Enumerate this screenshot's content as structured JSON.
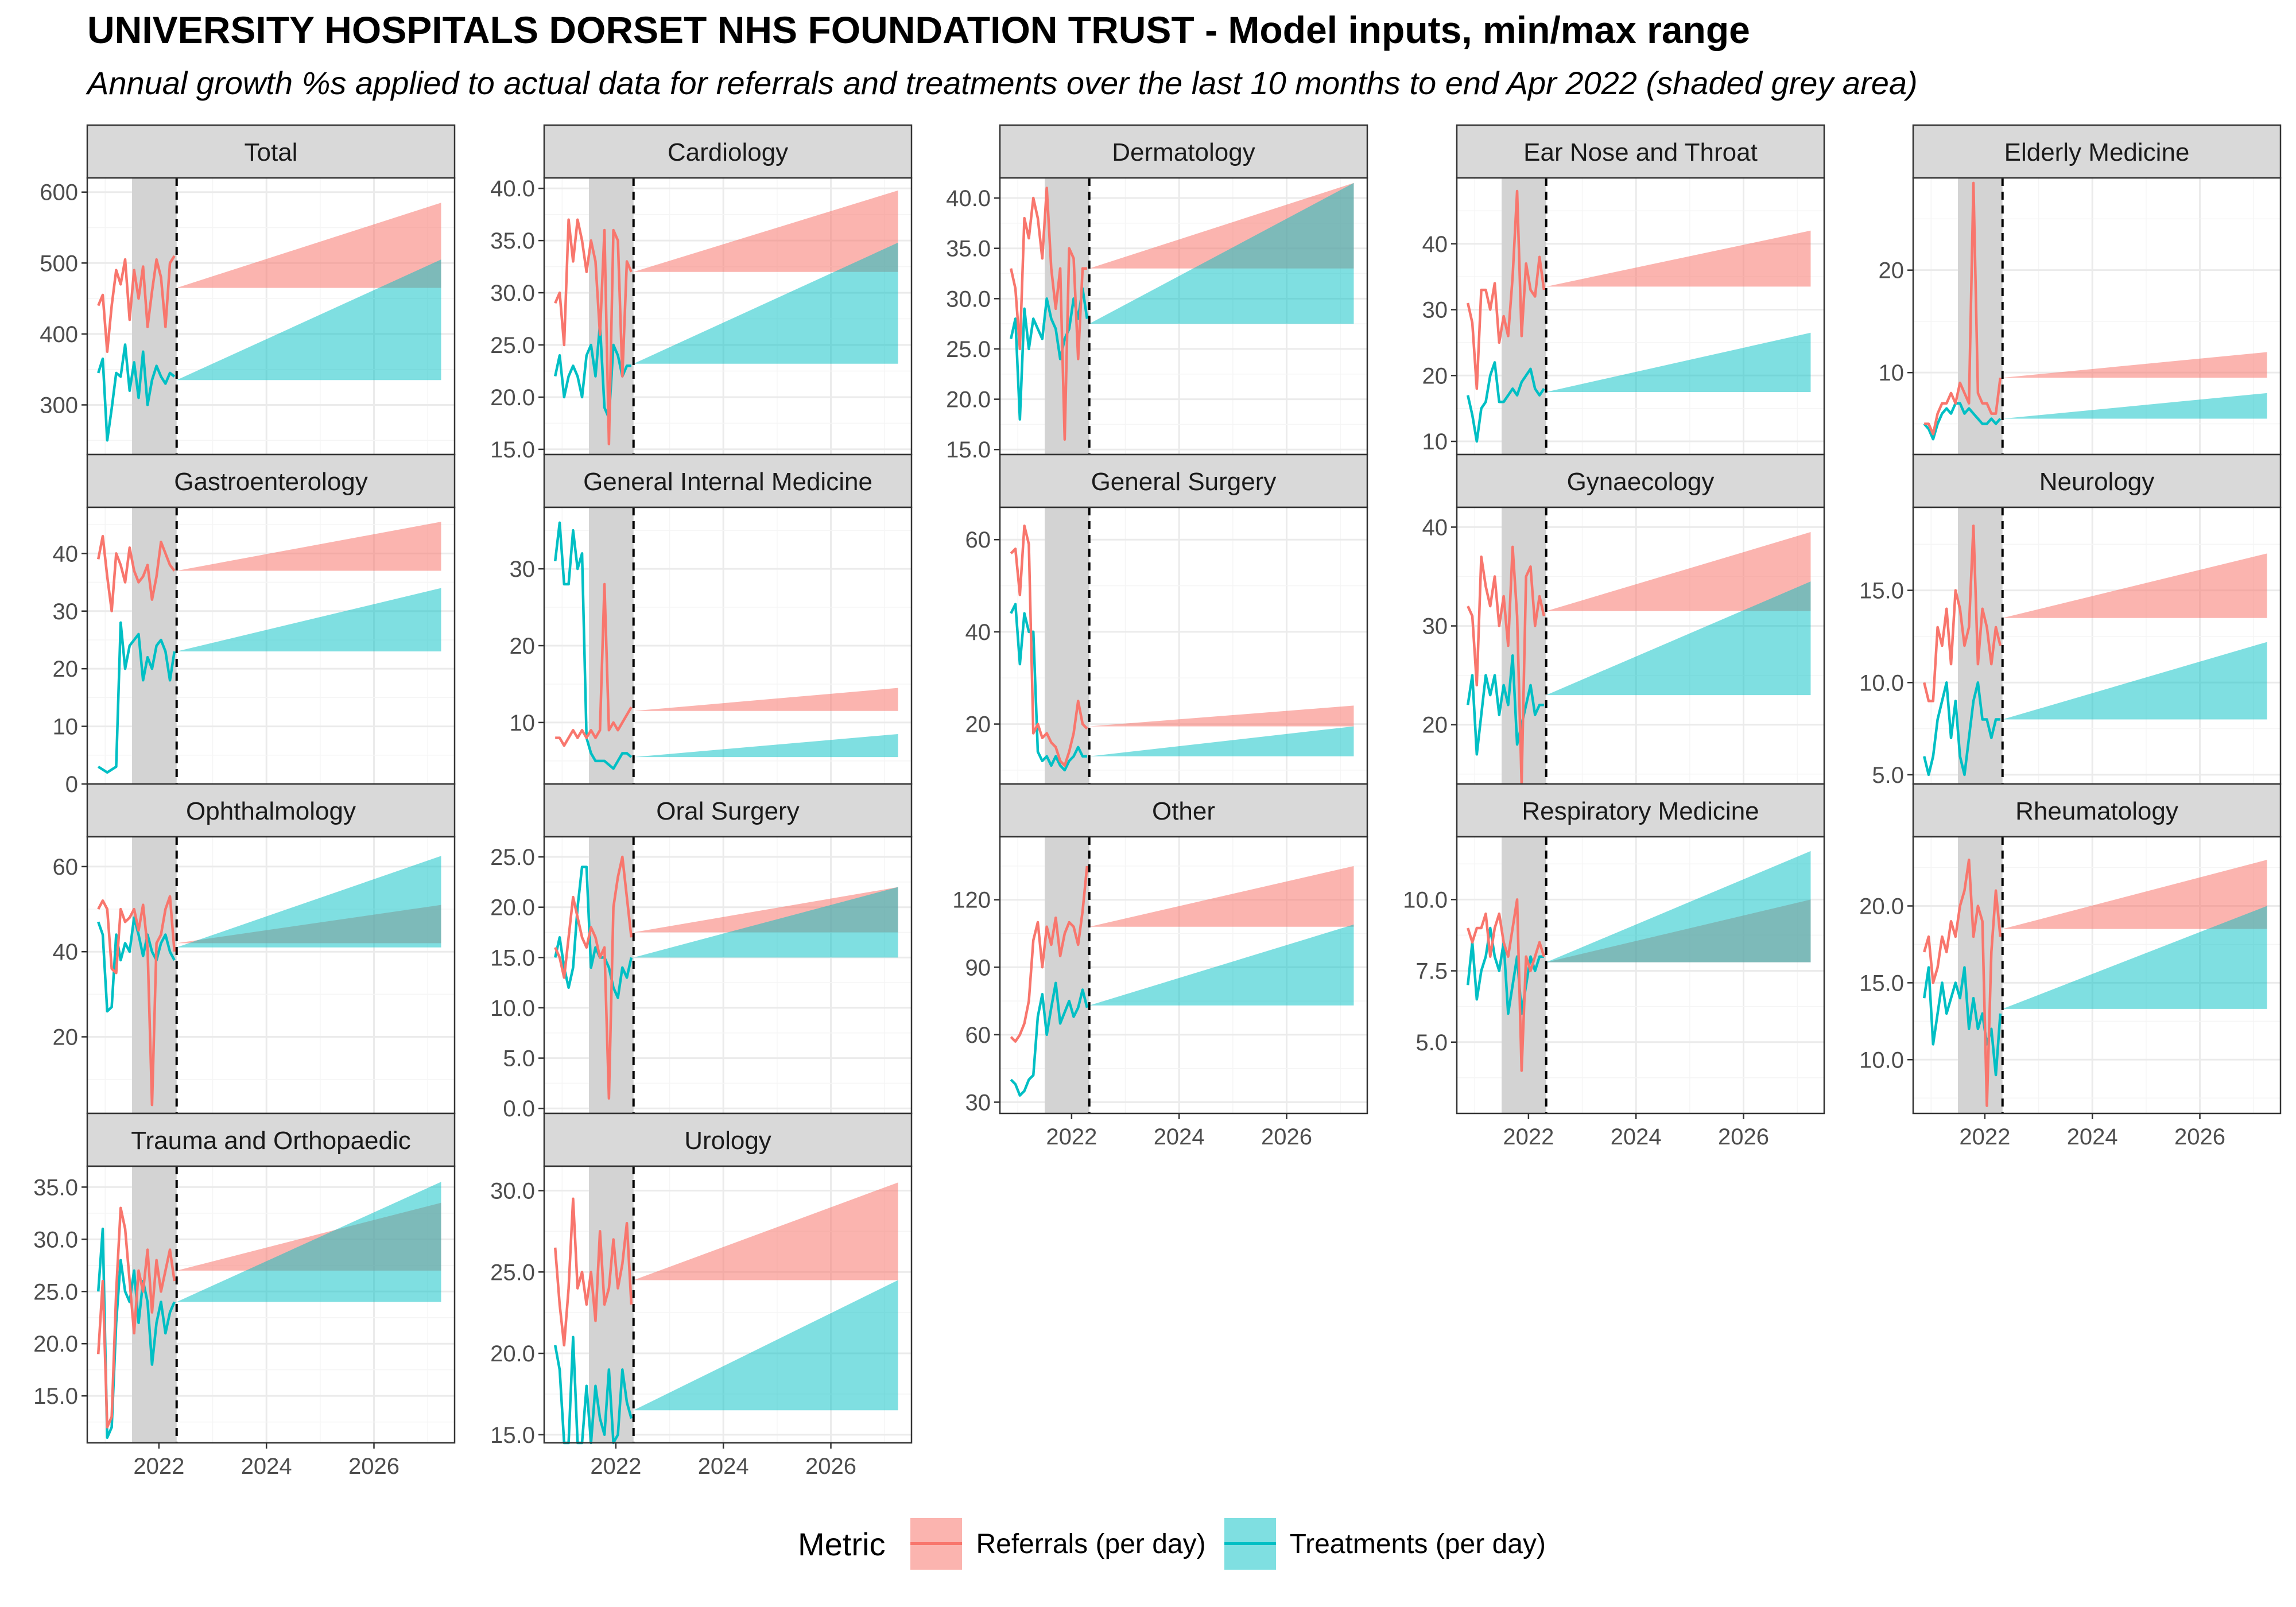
{
  "title": "UNIVERSITY HOSPITALS DORSET NHS FOUNDATION TRUST - Model inputs, min/max range",
  "subtitle": "Annual growth %s applied to actual data for referrals and treatments over the last 10 months to end Apr 2022 (shaded grey area)",
  "legend": {
    "title": "Metric",
    "items": [
      {
        "label": "Referrals (per day)",
        "color": "#F8766D"
      },
      {
        "label": "Treatments (per day)",
        "color": "#00BFC4"
      }
    ]
  },
  "colors": {
    "referrals": "#F8766D",
    "treatments": "#00BFC4",
    "strip": "#D9D9D9",
    "shade": "#D3D3D3"
  },
  "chart_data": {
    "type": "line",
    "x_axis": {
      "type": "date",
      "range": [
        "2020-09-01",
        "2027-07-01"
      ],
      "ticks": [
        "2022",
        "2024",
        "2026"
      ]
    },
    "shaded_period": [
      "2021-07-01",
      "2022-04-30"
    ],
    "vline": "2022-04-30",
    "projection": {
      "start": "2022-04-30",
      "end": "2027-03-31"
    },
    "months": [
      "2020-11",
      "2020-12",
      "2021-01",
      "2021-02",
      "2021-03",
      "2021-04",
      "2021-05",
      "2021-06",
      "2021-07",
      "2021-08",
      "2021-09",
      "2021-10",
      "2021-11",
      "2021-12",
      "2022-01",
      "2022-02",
      "2022-03",
      "2022-04"
    ],
    "panels": [
      {
        "name": "Total",
        "ylim": [
          230,
          620
        ],
        "yticks": [
          300,
          400,
          500,
          600
        ],
        "decimals": 0,
        "referrals": [
          440,
          455,
          375,
          440,
          490,
          470,
          505,
          420,
          490,
          450,
          495,
          410,
          460,
          505,
          480,
          410,
          500,
          510
        ],
        "treatments": [
          345,
          365,
          250,
          295,
          345,
          340,
          385,
          320,
          360,
          310,
          375,
          300,
          335,
          355,
          340,
          330,
          345,
          340
        ],
        "referral_band": [
          465,
          465,
          465,
          585
        ],
        "treatment_band": [
          335,
          335,
          335,
          505
        ]
      },
      {
        "name": "Cardiology",
        "ylim": [
          14.5,
          41
        ],
        "yticks": [
          15,
          20,
          25,
          30,
          35,
          40
        ],
        "decimals": 1,
        "referrals": [
          29,
          30,
          25,
          37,
          33,
          37,
          35,
          32,
          35,
          33,
          26,
          36,
          15.5,
          36,
          35,
          22,
          33,
          32
        ],
        "treatments": [
          22,
          24,
          20,
          22,
          23,
          22,
          20,
          24,
          25,
          22,
          27,
          19,
          18,
          25,
          24,
          22,
          23,
          23
        ],
        "referral_band": [
          32,
          32,
          32,
          39.8
        ],
        "treatment_band": [
          23.2,
          23.2,
          23.2,
          34.8
        ]
      },
      {
        "name": "Dermatology",
        "ylim": [
          14.5,
          42
        ],
        "yticks": [
          15,
          20,
          25,
          30,
          35,
          40
        ],
        "decimals": 1,
        "referrals": [
          33,
          31,
          25,
          38,
          36,
          40,
          38,
          34,
          41,
          33,
          29,
          33,
          16,
          35,
          34,
          24,
          33,
          33
        ],
        "treatments": [
          26,
          28,
          18,
          29,
          25,
          28,
          27,
          26,
          30,
          28,
          27,
          24,
          26,
          27,
          30,
          28,
          31,
          28
        ],
        "referral_band": [
          33,
          33,
          33,
          41.5
        ],
        "treatment_band": [
          27.5,
          27.5,
          27.5,
          41.5
        ]
      },
      {
        "name": "Ear Nose and Throat",
        "ylim": [
          8,
          50
        ],
        "yticks": [
          10,
          20,
          30,
          40
        ],
        "decimals": 0,
        "referrals": [
          31,
          28,
          18,
          33,
          33,
          30,
          34,
          25,
          29,
          26,
          35,
          48,
          26,
          37,
          33,
          32,
          38,
          33
        ],
        "treatments": [
          17,
          14,
          10,
          15,
          16,
          20,
          22,
          16,
          16,
          17,
          18,
          17,
          19,
          20,
          21,
          18,
          17,
          18
        ],
        "referral_band": [
          33.5,
          33.5,
          33.5,
          42
        ],
        "treatment_band": [
          17.5,
          17.5,
          17.5,
          26.5
        ]
      },
      {
        "name": "Elderly Medicine",
        "ylim": [
          2,
          29
        ],
        "yticks": [
          10,
          20
        ],
        "decimals": 0,
        "referrals": [
          5,
          5,
          4,
          6,
          7,
          7,
          8,
          7,
          9,
          8,
          7,
          28.5,
          8,
          7,
          7,
          6,
          6,
          9.5
        ],
        "treatments": [
          5,
          4.5,
          3.5,
          5,
          6,
          6.5,
          6,
          7,
          7,
          6,
          6.5,
          6,
          5.5,
          5,
          5,
          5.5,
          5,
          5.5
        ],
        "referral_band": [
          9.5,
          9.5,
          9.5,
          12
        ],
        "treatment_band": [
          5.5,
          5.5,
          5.5,
          8
        ]
      },
      {
        "name": "Gastroenterology",
        "ylim": [
          0,
          48
        ],
        "yticks": [
          0,
          10,
          20,
          30,
          40
        ],
        "decimals": 0,
        "referrals": [
          39,
          43,
          36,
          30,
          40,
          38,
          35,
          41,
          37,
          35,
          36,
          38,
          32,
          36,
          42,
          40,
          38,
          37
        ],
        "treatments": [
          3,
          2.5,
          2,
          2.5,
          3,
          28,
          20,
          24,
          25,
          26,
          18,
          22,
          20,
          24,
          25,
          23,
          18,
          23
        ],
        "referral_band": [
          37,
          37,
          37,
          45.5
        ],
        "treatment_band": [
          23,
          23,
          23,
          34
        ]
      },
      {
        "name": "General Internal Medicine",
        "ylim": [
          2,
          38
        ],
        "yticks": [
          10,
          20,
          30
        ],
        "decimals": 0,
        "referrals": [
          8,
          8,
          7,
          8,
          9,
          8,
          9,
          8,
          9,
          8,
          9,
          28,
          9,
          10,
          9,
          10,
          11,
          12
        ],
        "treatments": [
          31,
          36,
          28,
          28,
          35,
          30,
          32,
          8,
          6,
          5,
          5,
          5,
          4.5,
          4,
          5,
          6,
          6,
          5.5
        ],
        "referral_band": [
          11.5,
          11.5,
          11.5,
          14.5
        ],
        "treatment_band": [
          5.5,
          5.5,
          5.5,
          8.5
        ]
      },
      {
        "name": "General Surgery",
        "ylim": [
          7,
          67
        ],
        "yticks": [
          20,
          40,
          60
        ],
        "decimals": 0,
        "referrals": [
          57,
          58,
          48,
          63,
          59,
          18,
          20,
          17,
          18,
          16,
          15,
          12,
          11,
          14,
          18,
          25,
          20,
          19
        ],
        "treatments": [
          44,
          46,
          33,
          44,
          40,
          40,
          14,
          12,
          13,
          11,
          13,
          11,
          10,
          12,
          13,
          15,
          13,
          13
        ],
        "referral_band": [
          19.5,
          19.5,
          19.5,
          24
        ],
        "treatment_band": [
          13,
          13,
          13,
          19.5
        ]
      },
      {
        "name": "Gynaecology",
        "ylim": [
          14,
          42
        ],
        "yticks": [
          20,
          30,
          40
        ],
        "decimals": 0,
        "referrals": [
          32,
          31,
          24,
          37,
          34,
          32,
          35,
          30,
          33,
          28,
          38,
          31,
          12,
          35,
          36,
          30,
          33,
          31
        ],
        "treatments": [
          22,
          25,
          17,
          21,
          25,
          23,
          25,
          21,
          24,
          22,
          27,
          18,
          20,
          22,
          24,
          21,
          22,
          22
        ],
        "referral_band": [
          31.5,
          31.5,
          31.5,
          39.5
        ],
        "treatment_band": [
          23,
          23,
          23,
          34.5
        ]
      },
      {
        "name": "Neurology",
        "ylim": [
          4.5,
          19.5
        ],
        "yticks": [
          5,
          10,
          15
        ],
        "decimals": 1,
        "referrals": [
          10,
          9,
          9,
          13,
          12,
          14,
          11,
          15,
          14,
          12,
          13,
          18.5,
          11,
          14,
          13,
          11,
          13,
          12
        ],
        "treatments": [
          6,
          5,
          6,
          8,
          9,
          10,
          7,
          9,
          6,
          5,
          7,
          9,
          10,
          8,
          8,
          7,
          8,
          8
        ],
        "referral_band": [
          13.5,
          13.5,
          13.5,
          17
        ],
        "treatment_band": [
          8,
          8,
          8,
          12.2
        ]
      },
      {
        "name": "Ophthalmology",
        "ylim": [
          2,
          67
        ],
        "yticks": [
          20,
          40,
          60
        ],
        "decimals": 0,
        "referrals": [
          50,
          52,
          50,
          36,
          35,
          50,
          47,
          48,
          50,
          45,
          51,
          41,
          4,
          42,
          44,
          50,
          53,
          40
        ],
        "treatments": [
          47,
          44,
          26,
          27,
          44,
          38,
          42,
          40,
          48,
          44,
          39,
          44,
          40,
          38,
          42,
          44,
          40,
          38
        ],
        "referral_band": [
          42,
          42,
          42,
          51
        ],
        "treatment_band": [
          41,
          41,
          41,
          62.5
        ]
      },
      {
        "name": "Oral Surgery",
        "ylim": [
          -0.5,
          27
        ],
        "yticks": [
          0,
          5,
          10,
          15,
          20,
          25
        ],
        "decimals": 1,
        "referrals": [
          16,
          15,
          13,
          17,
          21,
          19,
          17,
          16,
          18,
          17,
          15,
          16,
          1,
          20,
          23,
          25,
          21,
          17
        ],
        "treatments": [
          15,
          17,
          14,
          12,
          14,
          20,
          24,
          24,
          14,
          16,
          15,
          15,
          14,
          12,
          11,
          14,
          13,
          15
        ],
        "referral_band": [
          17.5,
          17.5,
          17.5,
          22
        ],
        "treatment_band": [
          15,
          15,
          15,
          22
        ]
      },
      {
        "name": "Other",
        "ylim": [
          25,
          148
        ],
        "yticks": [
          30,
          60,
          90,
          120
        ],
        "decimals": 0,
        "referrals": [
          59,
          57,
          60,
          65,
          75,
          102,
          110,
          90,
          108,
          100,
          112,
          95,
          105,
          110,
          108,
          100,
          115,
          135
        ],
        "treatments": [
          40,
          38,
          33,
          35,
          40,
          42,
          68,
          78,
          60,
          72,
          83,
          65,
          70,
          75,
          68,
          72,
          80,
          72
        ],
        "referral_band": [
          108,
          108,
          108,
          135
        ],
        "treatment_band": [
          73,
          73,
          73,
          109
        ]
      },
      {
        "name": "Respiratory Medicine",
        "ylim": [
          2.5,
          12.2
        ],
        "yticks": [
          5,
          7.5,
          10
        ],
        "decimals": 1,
        "referrals": [
          9,
          8.5,
          9,
          9,
          9.5,
          8,
          9,
          9.5,
          8.5,
          8,
          9,
          10,
          4,
          8,
          7.5,
          8,
          8.5,
          8
        ],
        "treatments": [
          7,
          8.5,
          6.5,
          7.5,
          8,
          9,
          8,
          7.5,
          8.5,
          6,
          7,
          8,
          6,
          7,
          8,
          7.5,
          8,
          8
        ],
        "referral_band": [
          7.8,
          7.8,
          7.8,
          10
        ],
        "treatment_band": [
          7.8,
          7.8,
          7.8,
          11.7
        ]
      },
      {
        "name": "Rheumatology",
        "ylim": [
          6.5,
          24.5
        ],
        "yticks": [
          10,
          15,
          20
        ],
        "decimals": 1,
        "referrals": [
          17,
          18,
          15,
          16,
          18,
          17,
          19,
          18,
          20,
          21,
          23,
          18,
          20,
          19,
          7,
          17,
          21,
          18
        ],
        "treatments": [
          14,
          16,
          11,
          13,
          15,
          13,
          14,
          15,
          14,
          16,
          12,
          14,
          12,
          13,
          11,
          12,
          9,
          13
        ],
        "referral_band": [
          18.5,
          18.5,
          18.5,
          23
        ],
        "treatment_band": [
          13.3,
          13.3,
          13.3,
          20
        ]
      },
      {
        "name": "Trauma and Orthopaedic",
        "ylim": [
          10.5,
          37
        ],
        "yticks": [
          15,
          20,
          25,
          30,
          35
        ],
        "decimals": 1,
        "referrals": [
          19,
          26,
          12,
          13,
          25,
          33,
          31,
          26,
          21,
          27,
          25,
          29,
          23,
          28,
          25,
          27,
          29,
          26
        ],
        "treatments": [
          25,
          31,
          11,
          12,
          22,
          28,
          25,
          24,
          27,
          22,
          26,
          24,
          18,
          22,
          24,
          21,
          23,
          24
        ],
        "referral_band": [
          27,
          27,
          27,
          33.5
        ],
        "treatment_band": [
          24,
          24,
          24,
          35.5
        ]
      },
      {
        "name": "Urology",
        "ylim": [
          14.5,
          31.5
        ],
        "yticks": [
          15,
          20,
          25,
          30
        ],
        "decimals": 1,
        "referrals": [
          26.5,
          23,
          20.5,
          24,
          29.5,
          24,
          25,
          23,
          25,
          22,
          27.5,
          23,
          24,
          27,
          24,
          25.5,
          28,
          23
        ],
        "treatments": [
          20.5,
          19,
          14,
          13.5,
          21,
          14,
          14,
          18,
          14,
          18,
          16,
          15,
          19,
          14,
          15,
          19,
          17,
          16
        ],
        "referral_band": [
          24.5,
          24.5,
          24.5,
          30.5
        ],
        "treatment_band": [
          16.5,
          16.5,
          16.5,
          24.5
        ]
      }
    ]
  }
}
